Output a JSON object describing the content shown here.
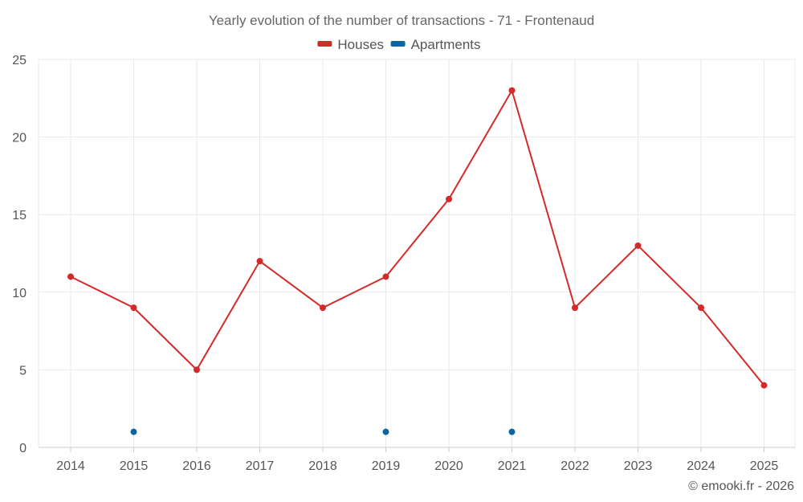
{
  "chart_data": {
    "type": "line",
    "title": "Yearly evolution of the number of transactions - 71 - Frontenaud",
    "categories": [
      "2014",
      "2015",
      "2016",
      "2017",
      "2018",
      "2019",
      "2020",
      "2021",
      "2022",
      "2023",
      "2024",
      "2025"
    ],
    "series": [
      {
        "name": "Houses",
        "color": "#d32a2a",
        "values": [
          11,
          9,
          5,
          12,
          9,
          11,
          16,
          23,
          9,
          13,
          9,
          4
        ]
      },
      {
        "name": "Apartments",
        "color": "#0a66a0",
        "values": [
          null,
          1,
          null,
          null,
          null,
          1,
          null,
          1,
          null,
          null,
          null,
          null
        ]
      }
    ],
    "ylim": [
      0,
      25
    ],
    "yticks": [
      0,
      5,
      10,
      15,
      20,
      25
    ],
    "grid": true,
    "legend": "top-center",
    "credit": "© emooki.fr - 2026"
  }
}
